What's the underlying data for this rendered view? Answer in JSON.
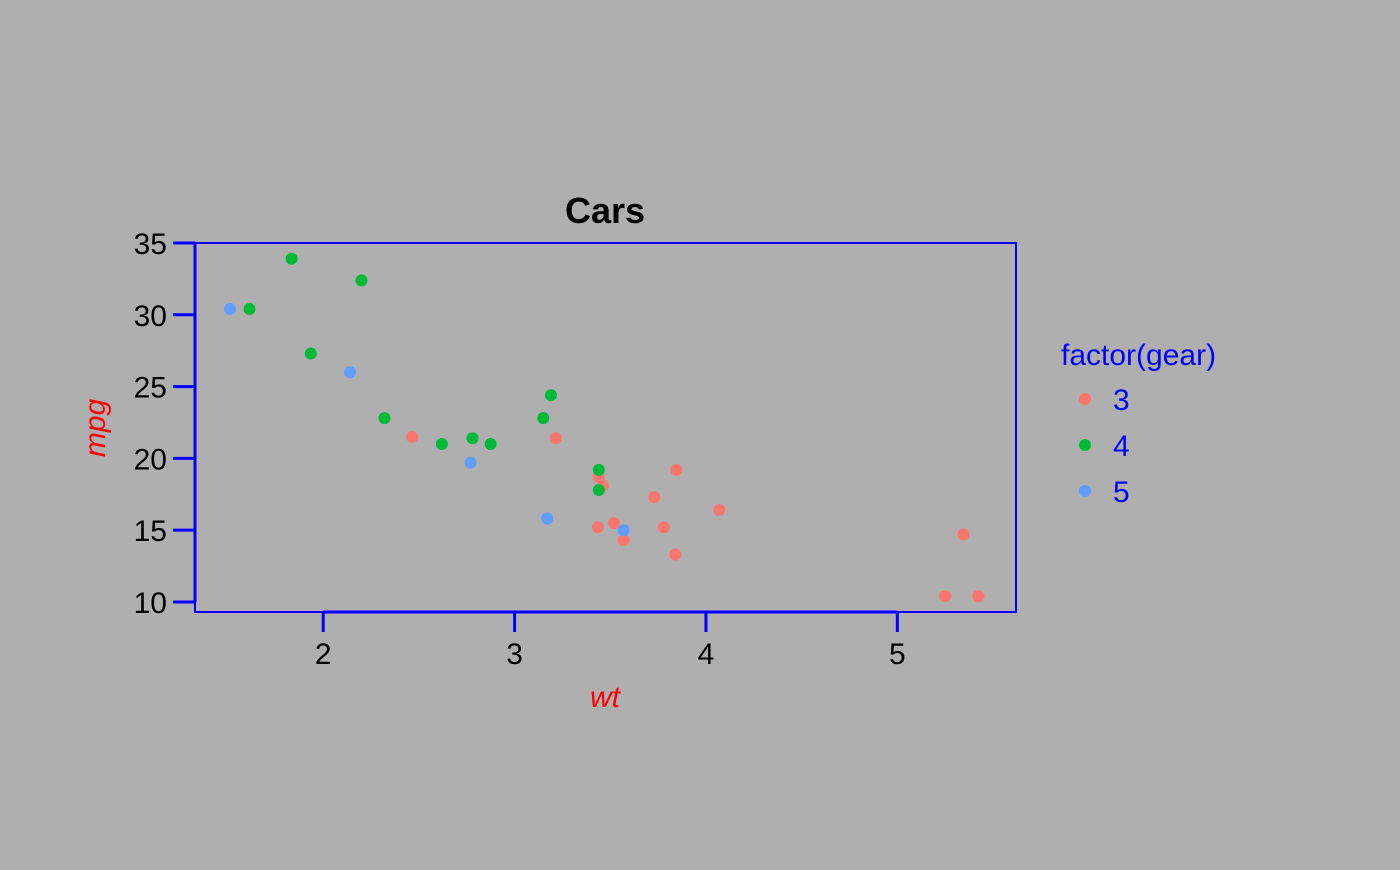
{
  "chart_data": {
    "type": "scatter",
    "title": "Cars",
    "xlabel": "wt",
    "ylabel": "mpg",
    "xlim": [
      1.33,
      5.62
    ],
    "ylim": [
      9.3,
      35.0
    ],
    "x_ticks": [
      2,
      3,
      4,
      5
    ],
    "y_ticks": [
      10,
      15,
      20,
      25,
      30,
      35
    ],
    "grid": false,
    "legend": {
      "title": "factor(gear)",
      "position": "right"
    },
    "colors": {
      "background": "#afafaf",
      "panel_border": "#0000ff",
      "axis": "#0000ff",
      "axis_title": "#ff0000",
      "legend_text": "#0000ff",
      "tick_text": "#000000",
      "title": "#000000"
    },
    "series": [
      {
        "name": "3",
        "color": "#f8766d",
        "points": [
          [
            3.215,
            21.4
          ],
          [
            3.44,
            18.7
          ],
          [
            3.46,
            18.1
          ],
          [
            3.57,
            14.3
          ],
          [
            4.07,
            16.4
          ],
          [
            3.73,
            17.3
          ],
          [
            3.78,
            15.2
          ],
          [
            5.25,
            10.4
          ],
          [
            5.424,
            10.4
          ],
          [
            5.345,
            14.7
          ],
          [
            2.465,
            21.5
          ],
          [
            3.52,
            15.5
          ],
          [
            3.435,
            15.2
          ],
          [
            3.84,
            13.3
          ],
          [
            3.845,
            19.2
          ]
        ]
      },
      {
        "name": "4",
        "color": "#00ba38",
        "points": [
          [
            2.62,
            21.0
          ],
          [
            2.875,
            21.0
          ],
          [
            2.32,
            22.8
          ],
          [
            3.19,
            24.4
          ],
          [
            3.15,
            22.8
          ],
          [
            3.44,
            19.2
          ],
          [
            3.44,
            17.8
          ],
          [
            2.2,
            32.4
          ],
          [
            1.615,
            30.4
          ],
          [
            1.835,
            33.9
          ],
          [
            1.935,
            27.3
          ],
          [
            2.78,
            21.4
          ]
        ]
      },
      {
        "name": "5",
        "color": "#619cff",
        "points": [
          [
            2.14,
            26.0
          ],
          [
            1.513,
            30.4
          ],
          [
            3.17,
            15.8
          ],
          [
            2.77,
            19.7
          ],
          [
            3.57,
            15.0
          ]
        ]
      }
    ]
  }
}
